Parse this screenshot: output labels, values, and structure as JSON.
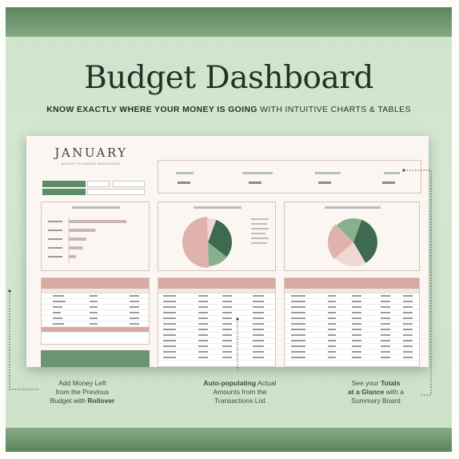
{
  "page_title": "Budget Dashboard",
  "tagline": {
    "bold": "KNOW EXACTLY WHERE YOUR MONEY IS GOING",
    "rest": " WITH INTUITIVE CHARTS & TABLES"
  },
  "sheet": {
    "month": "JANUARY",
    "subtitle": "BUDGET PLANNER DASHBOARD"
  },
  "annotations": {
    "left": {
      "line1": "Add Money Left",
      "line2": "from the Previous",
      "line3_pre": "Budget with ",
      "line3_bold": "Rollover"
    },
    "center": {
      "line1_bold": "Auto-populating",
      "line1_rest": " Actual",
      "line2": "Amounts from the",
      "line3": "Transactions List"
    },
    "right": {
      "line1_pre": "See your ",
      "line1_bold": "Totals",
      "line2_bold": "at a Glance",
      "line2_rest": " with a",
      "line3": "Summary Board"
    }
  },
  "colors": {
    "dark_green": "#3e6b4f",
    "mid_green": "#86b08e",
    "pink": "#dfb3ab",
    "light_pink": "#f0d8d2"
  },
  "chart_data": [
    {
      "type": "bar",
      "categories": [
        "",
        "",
        "",
        "",
        ""
      ],
      "values": [
        82,
        38,
        25,
        20,
        10
      ],
      "xlim": [
        0,
        100
      ]
    },
    {
      "type": "pie",
      "values": [
        30,
        14,
        50,
        6
      ]
    },
    {
      "type": "pie",
      "values": [
        36,
        22,
        24,
        18
      ]
    }
  ]
}
